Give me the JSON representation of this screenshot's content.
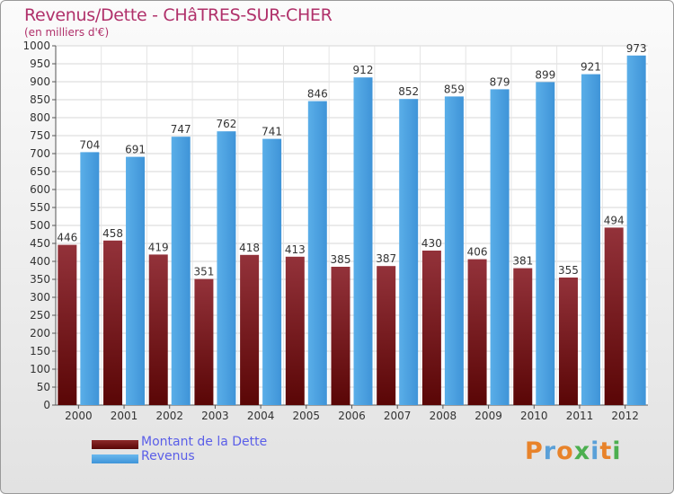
{
  "chart_data": {
    "type": "bar",
    "title": "Revenus/Dette - CHâTRES-SUR-CHER",
    "subtitle": "(en milliers d'€)",
    "categories": [
      "2000",
      "2001",
      "2002",
      "2003",
      "2004",
      "2005",
      "2006",
      "2007",
      "2008",
      "2009",
      "2010",
      "2011",
      "2012"
    ],
    "series": [
      {
        "name": "Montant de la Dette",
        "color": "#8b1a1a",
        "values": [
          446,
          458,
          419,
          351,
          418,
          413,
          385,
          387,
          430,
          406,
          381,
          355,
          494
        ]
      },
      {
        "name": "Revenus",
        "color": "#4a9fe0",
        "values": [
          704,
          691,
          747,
          762,
          741,
          846,
          912,
          852,
          859,
          879,
          899,
          921,
          973
        ]
      }
    ],
    "ylim": [
      0,
      1000
    ],
    "ytick_step": 50,
    "grid": true,
    "legend_position": "bottom-left"
  },
  "branding": {
    "logo_text": "Proxiti",
    "logo_colors": [
      "#e8832a",
      "#5aa0d8",
      "#e8832a",
      "#4caf50",
      "#5aa0d8",
      "#e8832a",
      "#4caf50"
    ]
  }
}
